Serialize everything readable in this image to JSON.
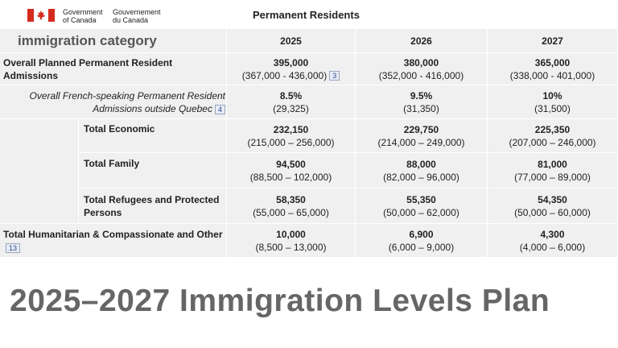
{
  "header": {
    "gov_en_line1": "Government",
    "gov_en_line2": "of Canada",
    "gov_fr_line1": "Gouvernement",
    "gov_fr_line2": "du Canada",
    "table_title": "Permanent Residents"
  },
  "columns": {
    "category_label": "immigration category",
    "years": [
      "2025",
      "2026",
      "2027"
    ]
  },
  "rows": [
    {
      "label": "Overall Planned Permanent Resident Admissions",
      "note": "3",
      "values": [
        {
          "value": "395,000",
          "range": "(367,000 - 436,000)"
        },
        {
          "value": "380,000",
          "range": "(352,000 - 416,000)"
        },
        {
          "value": "365,000",
          "range": "(338,000 - 401,000)"
        }
      ]
    },
    {
      "label": "Overall French-speaking Permanent Resident Admissions outside Quebec",
      "note": "4",
      "values": [
        {
          "value": "8.5%",
          "range": "(29,325)"
        },
        {
          "value": "9.5%",
          "range": "(31,350)"
        },
        {
          "value": "10%",
          "range": "(31,500)"
        }
      ]
    },
    {
      "label": "Total Economic",
      "values": [
        {
          "value": "232,150",
          "range": "(215,000 – 256,000)"
        },
        {
          "value": "229,750",
          "range": "(214,000 – 249,000)"
        },
        {
          "value": "225,350",
          "range": "(207,000 – 246,000)"
        }
      ]
    },
    {
      "label": "Total Family",
      "values": [
        {
          "value": "94,500",
          "range": "(88,500 – 102,000)"
        },
        {
          "value": "88,000",
          "range": "(82,000 – 96,000)"
        },
        {
          "value": "81,000",
          "range": "(77,000 – 89,000)"
        }
      ]
    },
    {
      "label": "Total Refugees and Protected Persons",
      "values": [
        {
          "value": "58,350",
          "range": "(55,000 – 65,000)"
        },
        {
          "value": "55,350",
          "range": "(50,000 – 62,000)"
        },
        {
          "value": "54,350",
          "range": "(50,000 – 60,000)"
        }
      ]
    },
    {
      "label": "Total Humanitarian & Compassionate and Other",
      "note": "13",
      "values": [
        {
          "value": "10,000",
          "range": "(8,500 – 13,000)"
        },
        {
          "value": "6,900",
          "range": "(6,000 – 9,000)"
        },
        {
          "value": "4,300",
          "range": "(4,000 – 6,000)"
        }
      ]
    }
  ],
  "footer": {
    "title": "2025–2027 Immigration Levels Plan"
  },
  "colors": {
    "flag_red": "#d52b1e",
    "table_bg": "#f0f0f0",
    "footer_text": "#666666"
  }
}
